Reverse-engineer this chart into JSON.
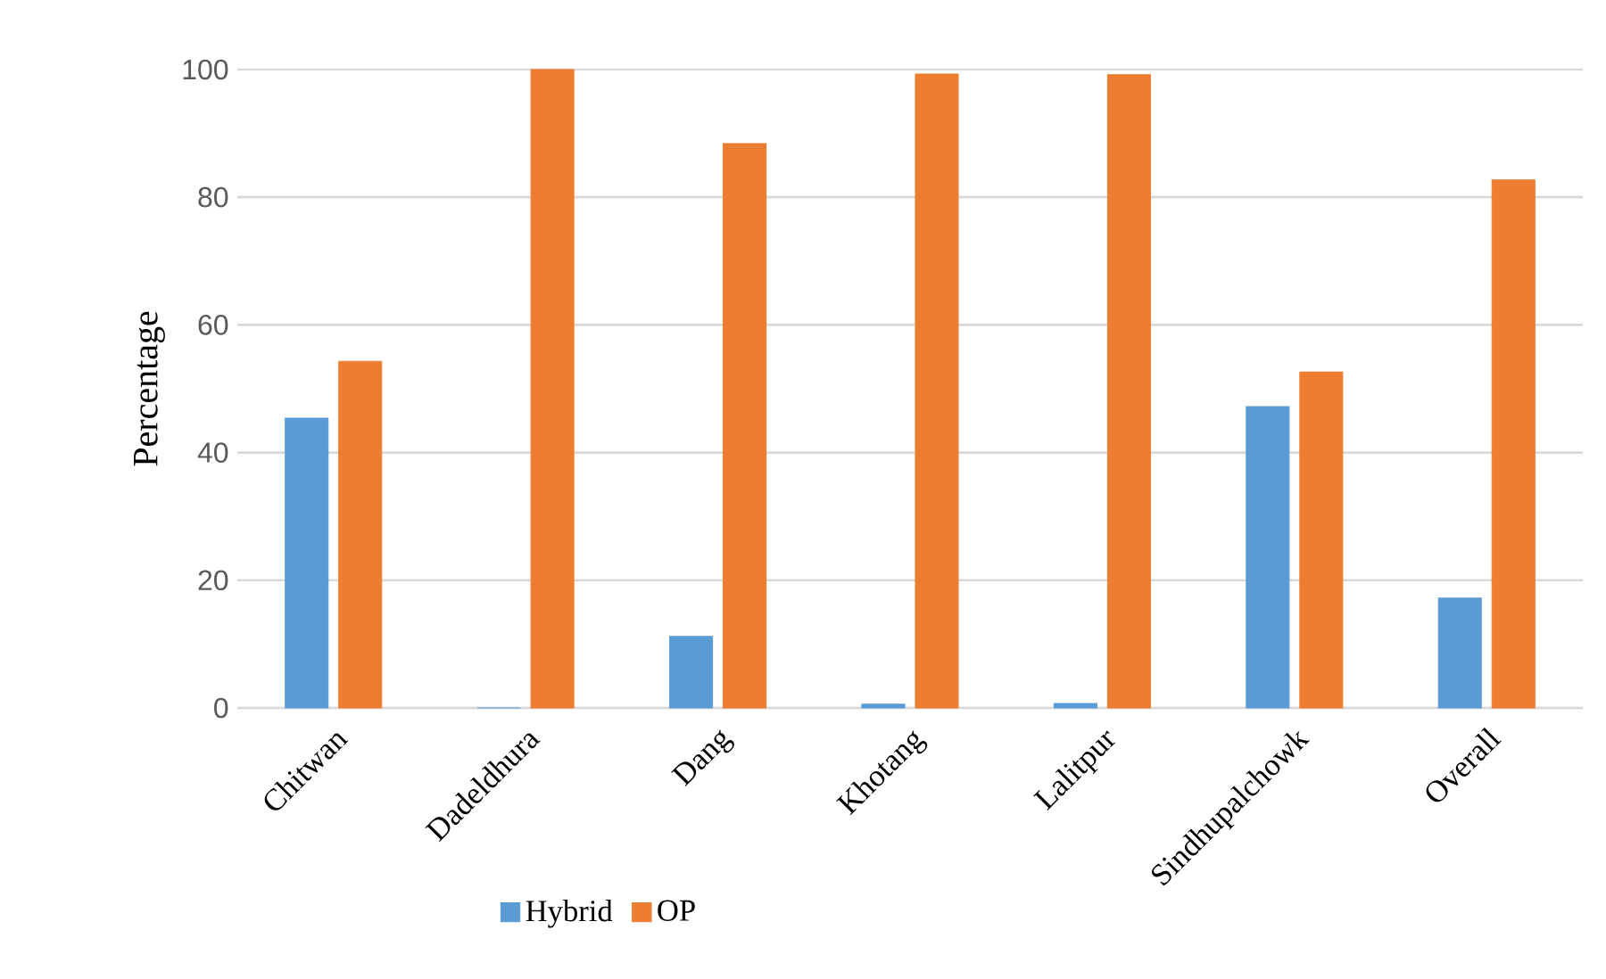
{
  "chart_data": {
    "type": "bar",
    "ylabel": "Percentage",
    "categories": [
      "Chitwan",
      "Dadeldhura",
      "Dang",
      "Khotang",
      "Lalitpur",
      "Sindhupalchowk",
      "Overall"
    ],
    "series": [
      {
        "name": "Hybrid",
        "color": "#5b9bd5",
        "values": [
          45.4,
          0,
          11.2,
          0.6,
          0.7,
          47.2,
          17.2
        ]
      },
      {
        "name": "OP",
        "color": "#ed7d31",
        "values": [
          54.3,
          100,
          88.4,
          99.3,
          99.2,
          52.6,
          82.7
        ]
      }
    ],
    "ylim": [
      0,
      100
    ],
    "yticks": [
      0,
      20,
      40,
      60,
      80,
      100
    ],
    "grid": "y",
    "legend": "bottom"
  }
}
